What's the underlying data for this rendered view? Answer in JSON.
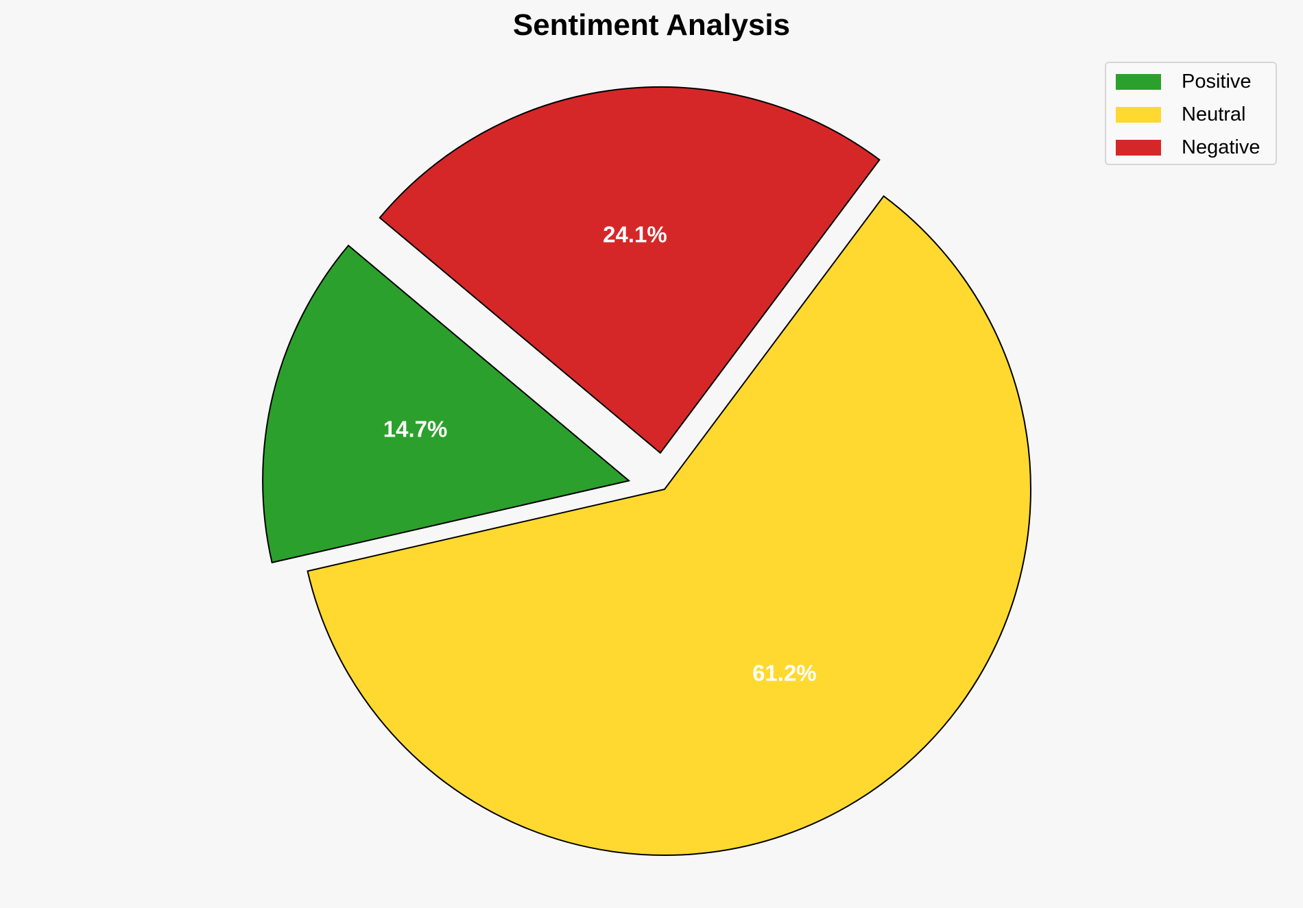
{
  "chart_data": {
    "type": "pie",
    "title": "Sentiment Analysis",
    "categories": [
      "Positive",
      "Neutral",
      "Negative"
    ],
    "values": [
      14.7,
      61.2,
      24.1
    ],
    "labels": [
      "14.7%",
      "61.2%",
      "24.1%"
    ],
    "colors": [
      "#2ca02c",
      "#ffd92f",
      "#d62728"
    ],
    "explode": [
      0.1,
      0,
      0.1
    ],
    "start_angle": 140,
    "legend_position": "top-right"
  }
}
